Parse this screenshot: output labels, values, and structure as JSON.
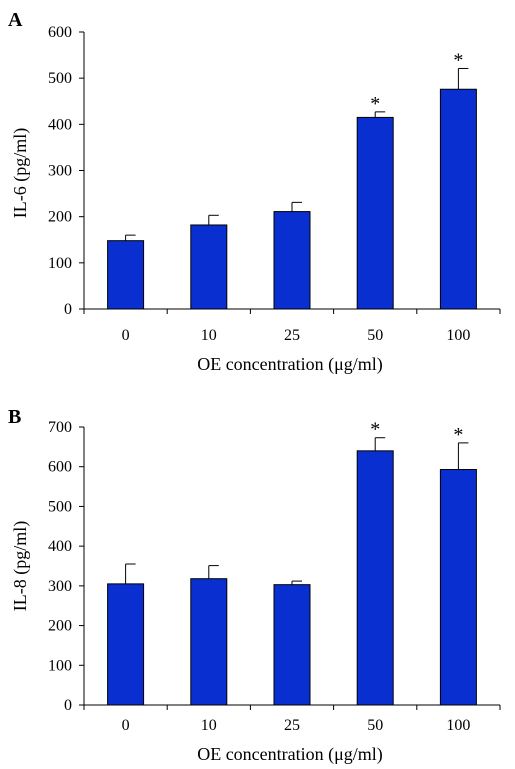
{
  "chart_data": [
    {
      "type": "bar",
      "panel_label": "A",
      "categories": [
        "0",
        "10",
        "25",
        "50",
        "100"
      ],
      "values": [
        148,
        182,
        211,
        415,
        476
      ],
      "error_upper": [
        12,
        21,
        20,
        12,
        45
      ],
      "significance": [
        "",
        "",
        "",
        "*",
        "*"
      ],
      "xlabel": "OE concentration (μg/ml)",
      "ylabel": "IL-6 (pg/ml)",
      "ylim": [
        0,
        600
      ],
      "yticks": [
        "0",
        "100",
        "200",
        "300",
        "400",
        "500",
        "600"
      ],
      "bar_color": "#0a2fd0",
      "grid": false
    },
    {
      "type": "bar",
      "panel_label": "B",
      "categories": [
        "0",
        "10",
        "25",
        "50",
        "100"
      ],
      "values": [
        305,
        318,
        303,
        640,
        593
      ],
      "error_upper": [
        50,
        33,
        9,
        33,
        67
      ],
      "significance": [
        "",
        "",
        "",
        "*",
        "*"
      ],
      "xlabel": "OE concentration (μg/ml)",
      "ylabel": "IL-8 (pg/ml)",
      "ylim": [
        0,
        700
      ],
      "yticks": [
        "0",
        "100",
        "200",
        "300",
        "400",
        "500",
        "600",
        "700"
      ],
      "bar_color": "#0a2fd0",
      "grid": false
    }
  ]
}
